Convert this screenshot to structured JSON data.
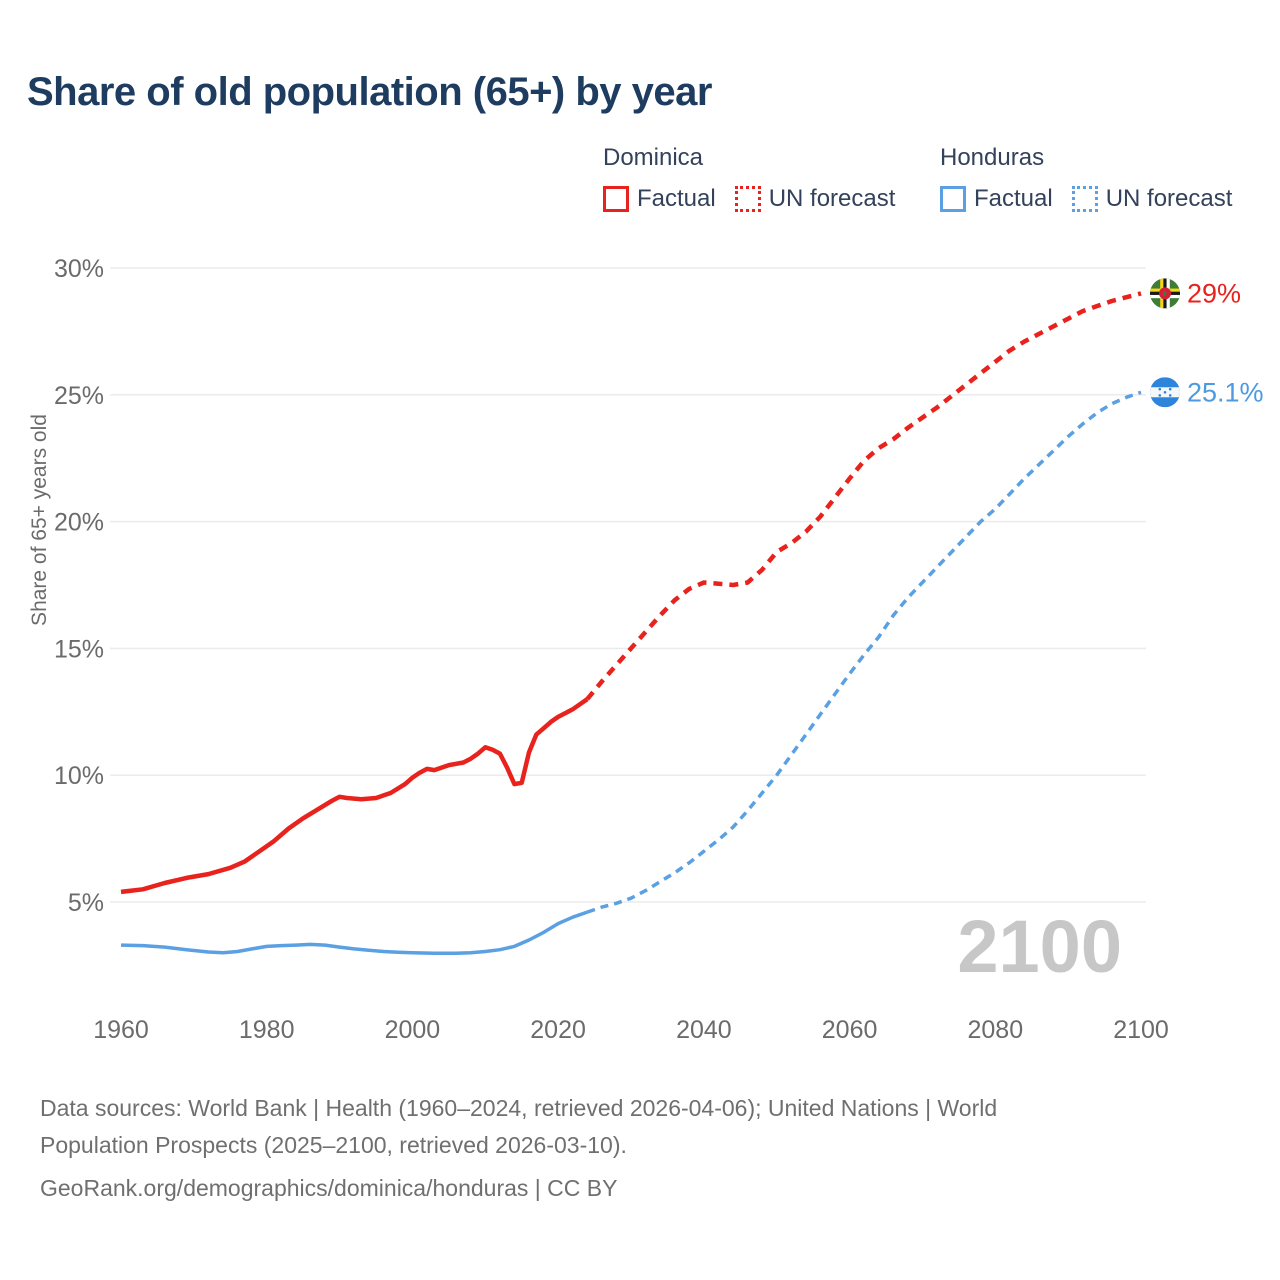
{
  "title": "Share of old population (65+) by year",
  "legend": {
    "groups": [
      {
        "country": "Dominica",
        "color_key": "dominica",
        "items": [
          {
            "label": "Factual",
            "style": "solid"
          },
          {
            "label": "UN forecast",
            "style": "dashed"
          }
        ]
      },
      {
        "country": "Honduras",
        "color_key": "honduras",
        "items": [
          {
            "label": "Factual",
            "style": "solid"
          },
          {
            "label": "UN forecast",
            "style": "dashed"
          }
        ]
      }
    ]
  },
  "colors": {
    "dominica": "#e8231d",
    "honduras": "#5aa0e2",
    "honduras_label": "#4d9ae0",
    "grid": "#ebebeb",
    "axis_text": "#6b6b6b",
    "watermark": "#c7c7c7",
    "flag_dominica_green": "#3f7d36",
    "flag_dominica_yellow": "#f7d618",
    "flag_dominica_black": "#1a1a1a",
    "flag_dominica_white": "#ffffff",
    "flag_dominica_red": "#d41f3b",
    "flag_honduras_blue": "#2e83da",
    "flag_honduras_white": "#f4f6f8"
  },
  "chart_data": {
    "type": "line",
    "title": "Share of old population (65+) by year",
    "xlabel": "",
    "ylabel": "Share of 65+ years old",
    "xlim": [
      1960,
      2100
    ],
    "ylim": [
      1.5,
      31
    ],
    "x_ticks": [
      1960,
      1980,
      2000,
      2020,
      2040,
      2060,
      2080,
      2100
    ],
    "y_ticks": [
      5,
      10,
      15,
      20,
      25,
      30
    ],
    "y_tick_suffix": "%",
    "grid": "horizontal",
    "legend_position": "top",
    "watermark": "2100",
    "series": [
      {
        "name": "Dominica Factual",
        "color_key": "dominica",
        "style": "solid",
        "points": [
          [
            1960,
            5.4
          ],
          [
            1963,
            5.5
          ],
          [
            1966,
            5.75
          ],
          [
            1969,
            5.95
          ],
          [
            1972,
            6.1
          ],
          [
            1975,
            6.35
          ],
          [
            1977,
            6.6
          ],
          [
            1979,
            7.0
          ],
          [
            1981,
            7.4
          ],
          [
            1983,
            7.9
          ],
          [
            1985,
            8.3
          ],
          [
            1987,
            8.65
          ],
          [
            1989,
            9.0
          ],
          [
            1990,
            9.15
          ],
          [
            1991,
            9.1
          ],
          [
            1993,
            9.05
          ],
          [
            1995,
            9.1
          ],
          [
            1997,
            9.3
          ],
          [
            1999,
            9.65
          ],
          [
            2000,
            9.9
          ],
          [
            2001,
            10.1
          ],
          [
            2002,
            10.25
          ],
          [
            2003,
            10.2
          ],
          [
            2004,
            10.3
          ],
          [
            2005,
            10.4
          ],
          [
            2006,
            10.45
          ],
          [
            2007,
            10.5
          ],
          [
            2008,
            10.65
          ],
          [
            2009,
            10.85
          ],
          [
            2010,
            11.1
          ],
          [
            2011,
            11.0
          ],
          [
            2012,
            10.85
          ],
          [
            2013,
            10.3
          ],
          [
            2014,
            9.65
          ],
          [
            2015,
            9.7
          ],
          [
            2016,
            10.9
          ],
          [
            2017,
            11.6
          ],
          [
            2018,
            11.85
          ],
          [
            2019,
            12.1
          ],
          [
            2020,
            12.3
          ],
          [
            2021,
            12.45
          ],
          [
            2022,
            12.6
          ],
          [
            2023,
            12.8
          ],
          [
            2024,
            13.0
          ]
        ]
      },
      {
        "name": "Dominica UN forecast",
        "color_key": "dominica",
        "style": "dashed",
        "points": [
          [
            2024,
            13.0
          ],
          [
            2026,
            13.7
          ],
          [
            2028,
            14.35
          ],
          [
            2030,
            15.0
          ],
          [
            2032,
            15.65
          ],
          [
            2034,
            16.3
          ],
          [
            2036,
            16.9
          ],
          [
            2038,
            17.35
          ],
          [
            2040,
            17.6
          ],
          [
            2042,
            17.55
          ],
          [
            2044,
            17.5
          ],
          [
            2046,
            17.6
          ],
          [
            2048,
            18.1
          ],
          [
            2050,
            18.8
          ],
          [
            2052,
            19.15
          ],
          [
            2054,
            19.6
          ],
          [
            2056,
            20.2
          ],
          [
            2058,
            20.95
          ],
          [
            2060,
            21.7
          ],
          [
            2062,
            22.4
          ],
          [
            2064,
            22.9
          ],
          [
            2066,
            23.25
          ],
          [
            2068,
            23.7
          ],
          [
            2070,
            24.1
          ],
          [
            2072,
            24.5
          ],
          [
            2074,
            24.95
          ],
          [
            2076,
            25.4
          ],
          [
            2078,
            25.85
          ],
          [
            2080,
            26.3
          ],
          [
            2082,
            26.75
          ],
          [
            2084,
            27.1
          ],
          [
            2086,
            27.4
          ],
          [
            2088,
            27.7
          ],
          [
            2090,
            28.0
          ],
          [
            2092,
            28.3
          ],
          [
            2094,
            28.5
          ],
          [
            2096,
            28.7
          ],
          [
            2098,
            28.85
          ],
          [
            2100,
            29.0
          ]
        ]
      },
      {
        "name": "Honduras Factual",
        "color_key": "honduras",
        "style": "solid",
        "points": [
          [
            1960,
            3.3
          ],
          [
            1963,
            3.28
          ],
          [
            1966,
            3.22
          ],
          [
            1969,
            3.12
          ],
          [
            1972,
            3.03
          ],
          [
            1974,
            3.0
          ],
          [
            1976,
            3.05
          ],
          [
            1978,
            3.15
          ],
          [
            1980,
            3.25
          ],
          [
            1982,
            3.28
          ],
          [
            1984,
            3.3
          ],
          [
            1986,
            3.33
          ],
          [
            1988,
            3.3
          ],
          [
            1990,
            3.22
          ],
          [
            1992,
            3.15
          ],
          [
            1994,
            3.1
          ],
          [
            1996,
            3.05
          ],
          [
            1998,
            3.02
          ],
          [
            2000,
            3.0
          ],
          [
            2003,
            2.98
          ],
          [
            2006,
            2.98
          ],
          [
            2008,
            3.0
          ],
          [
            2010,
            3.05
          ],
          [
            2012,
            3.12
          ],
          [
            2014,
            3.25
          ],
          [
            2016,
            3.5
          ],
          [
            2018,
            3.8
          ],
          [
            2020,
            4.15
          ],
          [
            2022,
            4.4
          ],
          [
            2024,
            4.6
          ]
        ]
      },
      {
        "name": "Honduras UN forecast",
        "color_key": "honduras",
        "style": "dashed",
        "points": [
          [
            2024,
            4.6
          ],
          [
            2026,
            4.8
          ],
          [
            2028,
            4.95
          ],
          [
            2030,
            5.15
          ],
          [
            2032,
            5.45
          ],
          [
            2034,
            5.8
          ],
          [
            2036,
            6.15
          ],
          [
            2038,
            6.55
          ],
          [
            2040,
            7.0
          ],
          [
            2042,
            7.45
          ],
          [
            2044,
            7.95
          ],
          [
            2046,
            8.6
          ],
          [
            2048,
            9.3
          ],
          [
            2050,
            10.0
          ],
          [
            2052,
            10.8
          ],
          [
            2054,
            11.6
          ],
          [
            2056,
            12.4
          ],
          [
            2058,
            13.2
          ],
          [
            2060,
            14.0
          ],
          [
            2062,
            14.75
          ],
          [
            2064,
            15.45
          ],
          [
            2066,
            16.3
          ],
          [
            2068,
            17.0
          ],
          [
            2070,
            17.6
          ],
          [
            2072,
            18.2
          ],
          [
            2074,
            18.8
          ],
          [
            2076,
            19.4
          ],
          [
            2078,
            20.0
          ],
          [
            2080,
            20.5
          ],
          [
            2082,
            21.1
          ],
          [
            2084,
            21.7
          ],
          [
            2086,
            22.25
          ],
          [
            2088,
            22.8
          ],
          [
            2090,
            23.35
          ],
          [
            2092,
            23.85
          ],
          [
            2094,
            24.3
          ],
          [
            2096,
            24.65
          ],
          [
            2098,
            24.9
          ],
          [
            2100,
            25.1
          ]
        ]
      }
    ],
    "end_labels": [
      {
        "text": "29%",
        "value": 29.0,
        "color_key": "dominica",
        "flag": "dominica"
      },
      {
        "text": "25.1%",
        "value": 25.1,
        "color_key": "honduras_label",
        "flag": "honduras"
      }
    ]
  },
  "footer": {
    "lines": [
      "Data sources: World Bank | Health (1960–2024, retrieved 2026-04-06); United Nations | World",
      "Population Prospects (2025–2100, retrieved 2026-03-10).",
      "GeoRank.org/demographics/dominica/honduras | CC BY"
    ]
  }
}
